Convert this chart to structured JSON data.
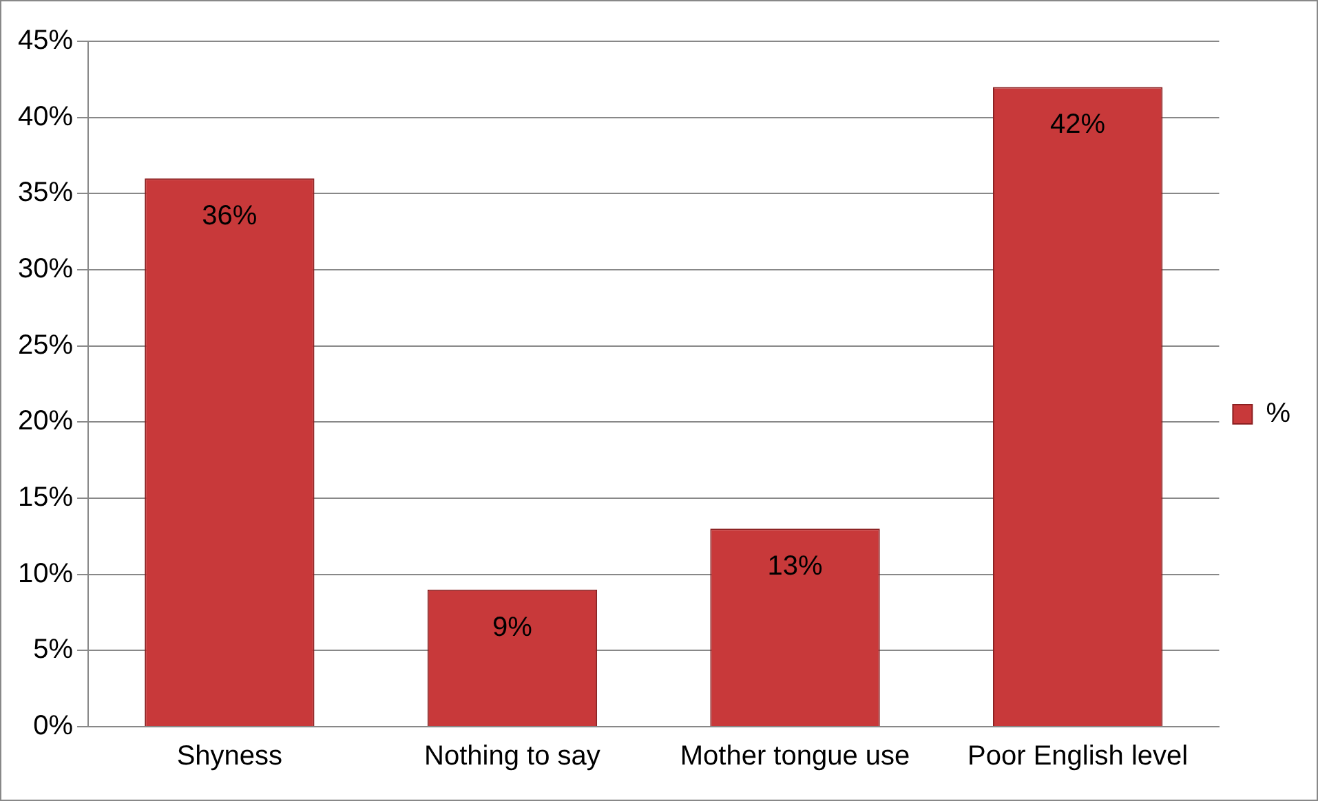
{
  "chart_data": {
    "type": "bar",
    "categories": [
      "Shyness",
      "Nothing to say",
      "Mother tongue use",
      "Poor English level"
    ],
    "series": [
      {
        "name": "%",
        "color": "#c8393a",
        "values": [
          36,
          9,
          13,
          42
        ],
        "value_labels": [
          "36%",
          "9%",
          "13%",
          "42%"
        ]
      }
    ],
    "ylim": [
      0,
      45
    ],
    "yticks": [
      {
        "value": 0,
        "label": "0%"
      },
      {
        "value": 5,
        "label": "5%"
      },
      {
        "value": 10,
        "label": "10%"
      },
      {
        "value": 15,
        "label": "15%"
      },
      {
        "value": 20,
        "label": "20%"
      },
      {
        "value": 25,
        "label": "25%"
      },
      {
        "value": 30,
        "label": "30%"
      },
      {
        "value": 35,
        "label": "35%"
      },
      {
        "value": 40,
        "label": "40%"
      },
      {
        "value": 45,
        "label": "45%"
      }
    ],
    "grid": "y",
    "legend": "right"
  }
}
